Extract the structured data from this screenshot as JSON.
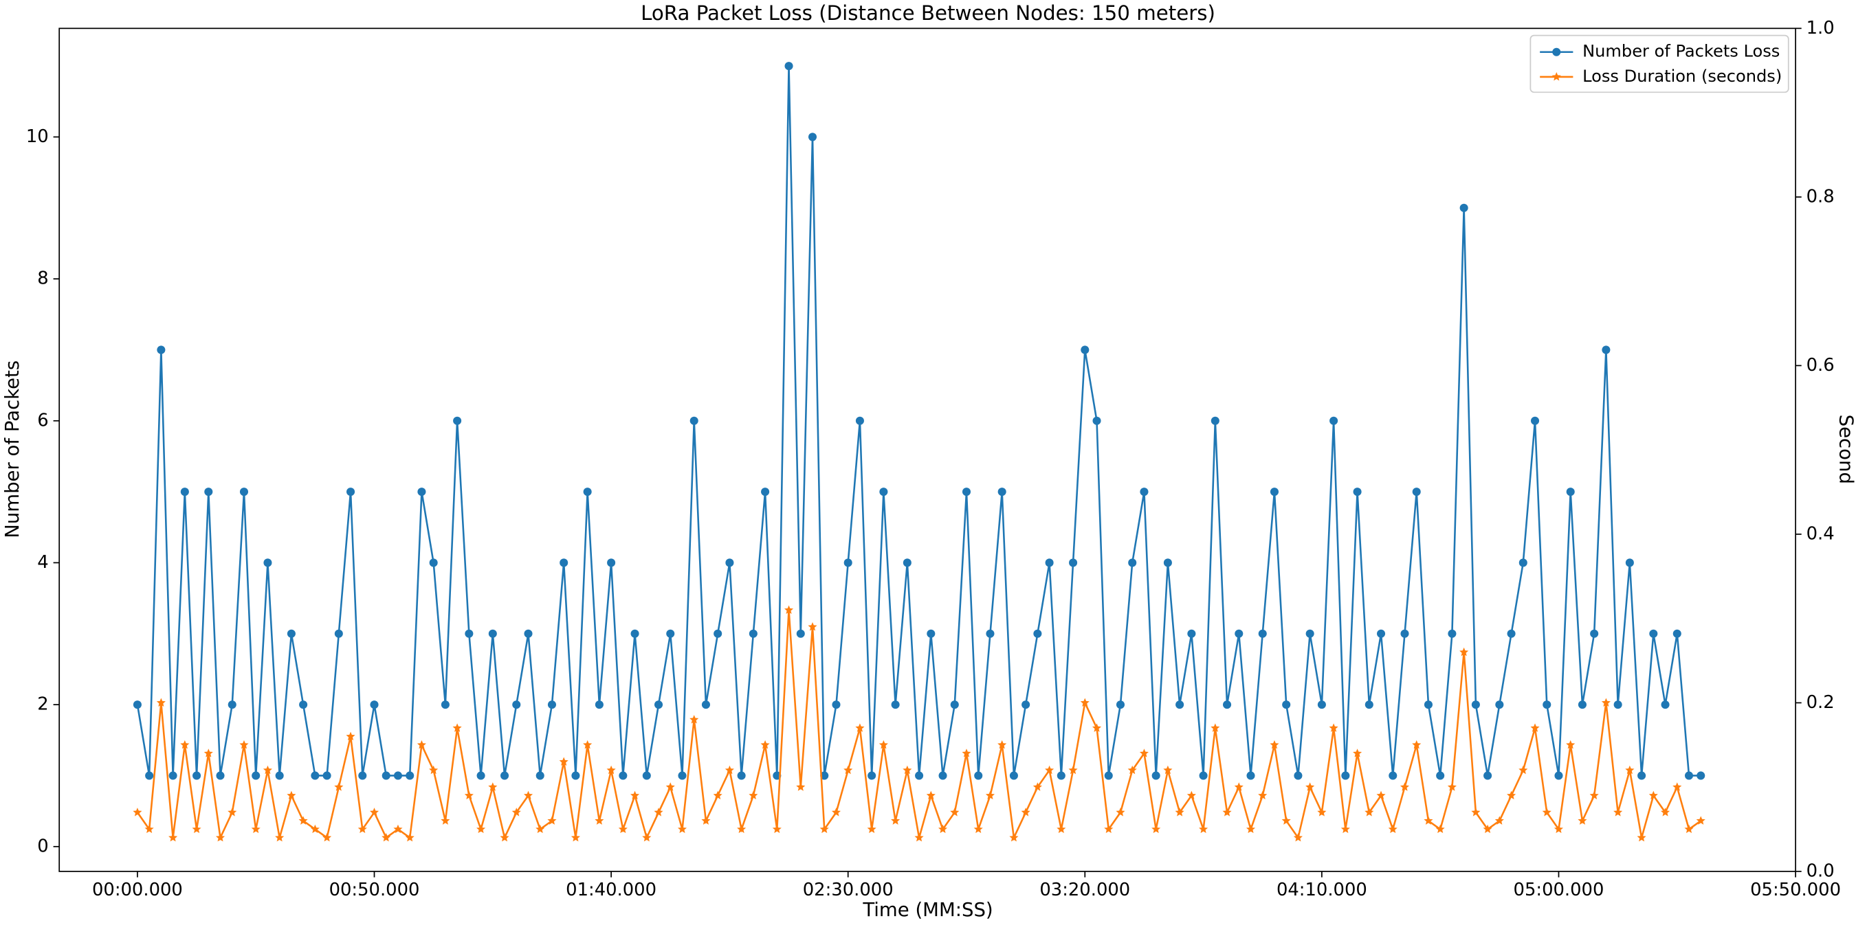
{
  "chart_data": {
    "type": "line",
    "title": "LoRa Packet Loss (Distance Between Nodes: 150 meters)",
    "x_label": "Time (MM:SS)",
    "y_label": "Number of Packets",
    "y2_label": "Second",
    "x": [
      0,
      2.5,
      5,
      7.5,
      10,
      12.5,
      15,
      17.5,
      20,
      22.5,
      25,
      27.5,
      30,
      32.5,
      35,
      37.5,
      40,
      42.5,
      45,
      47.5,
      50,
      52.5,
      55,
      57.5,
      60,
      62.5,
      65,
      67.5,
      70,
      72.5,
      75,
      77.5,
      80,
      82.5,
      85,
      87.5,
      90,
      92.5,
      95,
      97.5,
      100,
      102.5,
      105,
      107.5,
      110,
      112.5,
      115,
      117.5,
      120,
      122.5,
      125,
      127.5,
      130,
      132.5,
      135,
      137.5,
      140,
      142.5,
      145,
      147.5,
      150,
      152.5,
      155,
      157.5,
      160,
      162.5,
      165,
      167.5,
      170,
      172.5,
      175,
      177.5,
      180,
      182.5,
      185,
      187.5,
      190,
      192.5,
      195,
      197.5,
      200,
      202.5,
      205,
      207.5,
      210,
      212.5,
      215,
      217.5,
      220,
      222.5,
      225,
      227.5,
      230,
      232.5,
      235,
      237.5,
      240,
      242.5,
      245,
      247.5,
      250,
      252.5,
      255,
      257.5,
      260,
      262.5,
      265,
      267.5,
      270,
      272.5,
      275,
      277.5,
      280,
      282.5,
      285,
      287.5,
      290,
      292.5,
      295,
      297.5,
      300,
      302.5,
      305,
      307.5,
      310,
      312.5,
      315,
      317.5,
      320,
      322.5,
      325,
      327.5,
      330
    ],
    "series": [
      {
        "name": "Number of Packets Loss",
        "color": "#1f77b4",
        "marker": "circle",
        "axis": "y",
        "values": [
          2,
          1,
          7,
          1,
          5,
          1,
          5,
          1,
          2,
          5,
          1,
          4,
          1,
          3,
          2,
          1,
          1,
          3,
          5,
          1,
          2,
          1,
          1,
          1,
          5,
          4,
          2,
          6,
          3,
          1,
          3,
          1,
          2,
          3,
          1,
          2,
          4,
          1,
          5,
          2,
          4,
          1,
          3,
          1,
          2,
          3,
          1,
          6,
          2,
          3,
          4,
          1,
          3,
          5,
          1,
          11,
          3,
          10,
          1,
          2,
          4,
          6,
          1,
          5,
          2,
          4,
          1,
          3,
          1,
          2,
          5,
          1,
          3,
          5,
          1,
          2,
          3,
          4,
          1,
          4,
          7,
          6,
          1,
          2,
          4,
          5,
          1,
          4,
          2,
          3,
          1,
          6,
          2,
          3,
          1,
          3,
          5,
          2,
          1,
          3,
          2,
          6,
          1,
          5,
          2,
          3,
          1,
          3,
          5,
          2,
          1,
          3,
          9,
          2,
          1,
          2,
          3,
          4,
          6,
          2,
          1,
          5,
          2,
          3,
          7,
          2,
          4,
          1,
          3,
          2,
          3,
          1,
          1
        ]
      },
      {
        "name": "Loss Duration (seconds)",
        "color": "#ff7f0e",
        "marker": "star",
        "axis": "y2",
        "values": [
          0.07,
          0.05,
          0.2,
          0.04,
          0.15,
          0.05,
          0.14,
          0.04,
          0.07,
          0.15,
          0.05,
          0.12,
          0.04,
          0.09,
          0.06,
          0.05,
          0.04,
          0.1,
          0.16,
          0.05,
          0.07,
          0.04,
          0.05,
          0.04,
          0.15,
          0.12,
          0.06,
          0.17,
          0.09,
          0.05,
          0.1,
          0.04,
          0.07,
          0.09,
          0.05,
          0.06,
          0.13,
          0.04,
          0.15,
          0.06,
          0.12,
          0.05,
          0.09,
          0.04,
          0.07,
          0.1,
          0.05,
          0.18,
          0.06,
          0.09,
          0.12,
          0.05,
          0.09,
          0.15,
          0.05,
          0.31,
          0.1,
          0.29,
          0.05,
          0.07,
          0.12,
          0.17,
          0.05,
          0.15,
          0.06,
          0.12,
          0.04,
          0.09,
          0.05,
          0.07,
          0.14,
          0.05,
          0.09,
          0.15,
          0.04,
          0.07,
          0.1,
          0.12,
          0.05,
          0.12,
          0.2,
          0.17,
          0.05,
          0.07,
          0.12,
          0.14,
          0.05,
          0.12,
          0.07,
          0.09,
          0.05,
          0.17,
          0.07,
          0.1,
          0.05,
          0.09,
          0.15,
          0.06,
          0.04,
          0.1,
          0.07,
          0.17,
          0.05,
          0.14,
          0.07,
          0.09,
          0.05,
          0.1,
          0.15,
          0.06,
          0.05,
          0.1,
          0.26,
          0.07,
          0.05,
          0.06,
          0.09,
          0.12,
          0.17,
          0.07,
          0.05,
          0.15,
          0.06,
          0.09,
          0.2,
          0.07,
          0.12,
          0.04,
          0.09,
          0.07,
          0.1,
          0.05,
          0.06
        ]
      }
    ],
    "xlim": [
      -16.5,
      350
    ],
    "xticks": [
      {
        "value": 0,
        "label": "00:00.000"
      },
      {
        "value": 50,
        "label": "00:50.000"
      },
      {
        "value": 100,
        "label": "01:40.000"
      },
      {
        "value": 150,
        "label": "02:30.000"
      },
      {
        "value": 200,
        "label": "03:20.000"
      },
      {
        "value": 250,
        "label": "04:10.000"
      },
      {
        "value": 300,
        "label": "05:00.000"
      },
      {
        "value": 350,
        "label": "05:50.000"
      }
    ],
    "ylim": [
      -0.35,
      11.53
    ],
    "yticks": [
      0,
      2,
      4,
      6,
      8,
      10
    ],
    "y2lim": [
      0,
      1
    ],
    "y2ticks": [
      {
        "value": 0,
        "label": "0.0"
      },
      0.2,
      0.4,
      0.6,
      0.8,
      {
        "value": 1,
        "label": "1.0"
      }
    ],
    "legend": "upper right",
    "grid": false
  }
}
